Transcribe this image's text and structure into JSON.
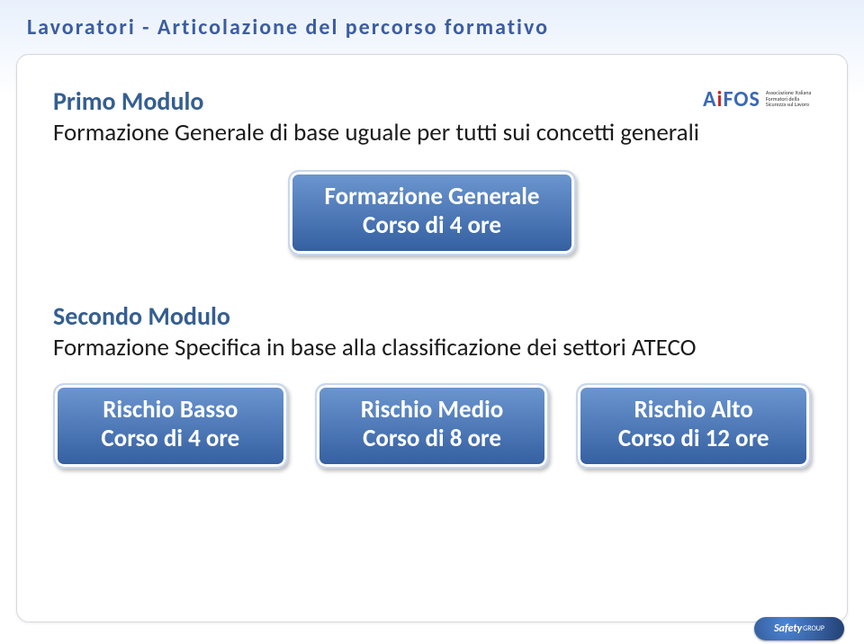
{
  "title": "Lavoratori - Articolazione del percorso formativo",
  "title_color": "#3d5da0",
  "title_fontsize": 24,
  "background_gradient": {
    "top": "#e8f0fc",
    "bottom": "#ffffff"
  },
  "card": {
    "background": "#ffffff",
    "border": "#d5d9df",
    "radius": 14
  },
  "logo": {
    "text": "AiFOS",
    "colors": {
      "default": "#3a68b4",
      "accent": "#c22b2b"
    },
    "sub": "Associazione Italiana Formatori della Sicurezza sul Lavoro"
  },
  "section1": {
    "title": "Primo Modulo",
    "desc": "Formazione Generale di base uguale per tutti sui concetti generali",
    "title_color": "#355f91",
    "desc_color": "#1b1b1b",
    "fontsize_title": 28,
    "fontsize_desc": 27
  },
  "pill_main": {
    "line1": "Formazione Generale",
    "line2": "Corso di 4 ore",
    "gradient": [
      "#6d97d0",
      "#335ea0"
    ],
    "text_color": "#ffffff",
    "border": "#c9d6ea",
    "fontsize": 27
  },
  "section2": {
    "title": "Secondo Modulo",
    "desc": "Formazione Specifica in base alla classificazione dei settori ATECO"
  },
  "pill_style": {
    "gradient": [
      "#6d97d0",
      "#335ea0"
    ],
    "text_color": "#ffffff",
    "border": "#c9d6ea",
    "fontsize": 27,
    "radius": 12,
    "padding": "12px 22px 14px",
    "shadow": "2px 3px 4px rgba(0,0,0,0.25)"
  },
  "pills": [
    {
      "line1": "Rischio Basso",
      "line2": "Corso di 4 ore"
    },
    {
      "line1": "Rischio Medio",
      "line2": "Corso di 8 ore"
    },
    {
      "line1": "Rischio Alto",
      "line2": "Corso di 12 ore"
    }
  ],
  "footer_logo": {
    "text1": "Safety",
    "text2": "GROUP",
    "gradient": [
      "#4e86d6",
      "#223f72"
    ]
  }
}
